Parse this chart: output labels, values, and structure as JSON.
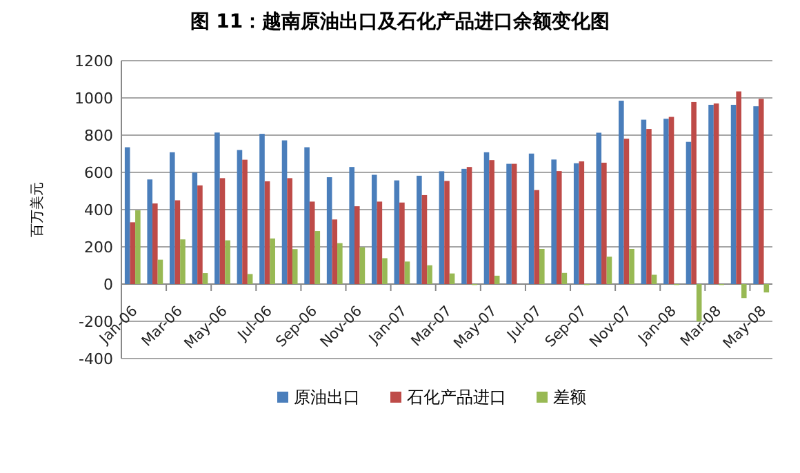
{
  "chart_data": {
    "type": "bar",
    "title": "图 11：越南原油出口及石化产品进口余额变化图",
    "ylabel": "百万美元",
    "categories": [
      "Jan-06",
      null,
      "Mar-06",
      null,
      "May-06",
      null,
      "Jul-06",
      null,
      "Sep-06",
      null,
      "Nov-06",
      null,
      "Jan-07",
      null,
      "Mar-07",
      null,
      "May-07",
      null,
      "Jul-07",
      null,
      "Sep-07",
      null,
      "Nov-07",
      null,
      "Jan-08",
      null,
      "Mar-08",
      null,
      "May-08"
    ],
    "series": [
      {
        "name": "原油出口",
        "color": "#4a7ebb",
        "values": [
          735,
          562,
          708,
          599,
          814,
          720,
          807,
          772,
          735,
          574,
          629,
          587,
          557,
          582,
          606,
          619,
          708,
          646,
          701,
          669,
          649,
          813,
          985,
          883,
          888,
          764,
          963,
          963,
          955
        ]
      },
      {
        "name": "石化产品进口",
        "color": "#be4b48",
        "values": [
          332,
          433,
          450,
          530,
          569,
          668,
          552,
          569,
          443,
          347,
          418,
          443,
          438,
          478,
          554,
          629,
          666,
          646,
          505,
          607,
          659,
          652,
          781,
          833,
          898,
          978,
          970,
          1035,
          995
        ]
      },
      {
        "name": "差额",
        "color": "#98b954",
        "values": [
          396,
          131,
          240,
          59,
          235,
          54,
          245,
          188,
          285,
          220,
          198,
          139,
          121,
          101,
          57,
          -5,
          45,
          0,
          189,
          60,
          -5,
          147,
          189,
          50,
          -5,
          -201,
          -5,
          -75,
          -45
        ]
      }
    ],
    "ylim": [
      -400,
      1200
    ],
    "yticks": [
      -400,
      -200,
      0,
      200,
      400,
      600,
      800,
      1000,
      1200
    ],
    "grid": "y",
    "legend": "bottom"
  }
}
